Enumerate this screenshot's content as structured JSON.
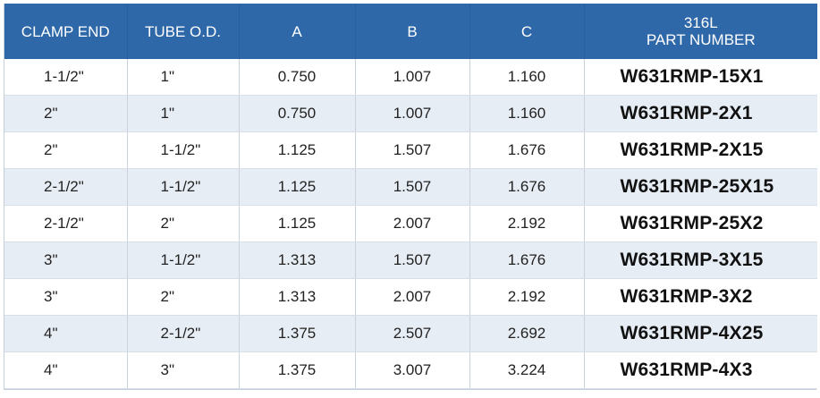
{
  "header": {
    "clamp_end": "CLAMP END",
    "tube_od": "TUBE O.D.",
    "a": "A",
    "b": "B",
    "c": "C",
    "part_line1": "316L",
    "part_line2": "PART NUMBER"
  },
  "rows": [
    {
      "clamp_end": "1-1/2\"",
      "tube_od": "1\"",
      "a": "0.750",
      "b": "1.007",
      "c": "1.160",
      "part": "W631RMP-15X1"
    },
    {
      "clamp_end": "2\"",
      "tube_od": "1\"",
      "a": "0.750",
      "b": "1.007",
      "c": "1.160",
      "part": "W631RMP-2X1"
    },
    {
      "clamp_end": "2\"",
      "tube_od": "1-1/2\"",
      "a": "1.125",
      "b": "1.507",
      "c": "1.676",
      "part": "W631RMP-2X15"
    },
    {
      "clamp_end": "2-1/2\"",
      "tube_od": "1-1/2\"",
      "a": "1.125",
      "b": "1.507",
      "c": "1.676",
      "part": "W631RMP-25X15"
    },
    {
      "clamp_end": "2-1/2\"",
      "tube_od": "2\"",
      "a": "1.125",
      "b": "2.007",
      "c": "2.192",
      "part": "W631RMP-25X2"
    },
    {
      "clamp_end": "3\"",
      "tube_od": "1-1/2\"",
      "a": "1.313",
      "b": "1.507",
      "c": "1.676",
      "part": "W631RMP-3X15"
    },
    {
      "clamp_end": "3\"",
      "tube_od": "2\"",
      "a": "1.313",
      "b": "2.007",
      "c": "2.192",
      "part": "W631RMP-3X2"
    },
    {
      "clamp_end": "4\"",
      "tube_od": "2-1/2\"",
      "a": "1.375",
      "b": "2.507",
      "c": "2.692",
      "part": "W631RMP-4X25"
    },
    {
      "clamp_end": "4\"",
      "tube_od": "3\"",
      "a": "1.375",
      "b": "3.007",
      "c": "3.224",
      "part": "W631RMP-4X3"
    }
  ],
  "colors": {
    "header_bg": "#2f68a8",
    "stripe_bg": "#e7edf4"
  }
}
